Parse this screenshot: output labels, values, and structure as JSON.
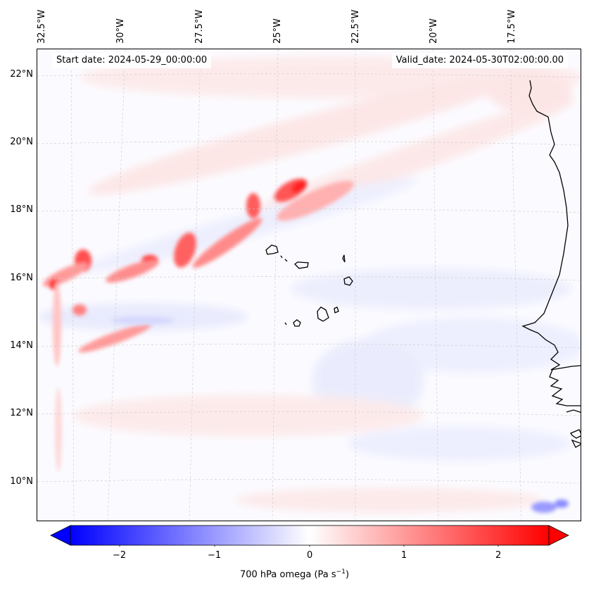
{
  "map": {
    "start_date": "Start date: 2024-05-29_00:00:00",
    "valid_date": "Valid_date: 2024-05-30T02:00:00.00",
    "lon_ticks": [
      "32.5°W",
      "30°W",
      "27.5°W",
      "25°W",
      "22.5°W",
      "20°W",
      "17.5°W"
    ],
    "lat_ticks": [
      "22°N",
      "20°N",
      "18°N",
      "16°N",
      "14°N",
      "12°N",
      "10°N"
    ],
    "extent": {
      "lon_min": -32.7,
      "lon_max": -15.5,
      "lat_min": 8.9,
      "lat_max": 22.8
    },
    "features": [
      "Cape Verde islands",
      "West African coastline (Senegal, Gambia, Guinea-Bissau)"
    ],
    "field": "700 hPa omega",
    "colormap": "bwr"
  },
  "colorbar": {
    "ticks": [
      "−2",
      "−1",
      "0",
      "1",
      "2"
    ],
    "label_main": "700 hPa omega (Pa s",
    "label_sup": "−1",
    "label_end": ")",
    "range": [
      -2.6,
      2.6
    ],
    "low_color": "#0000ff",
    "mid_color": "#ffffff",
    "high_color": "#ff0000"
  }
}
